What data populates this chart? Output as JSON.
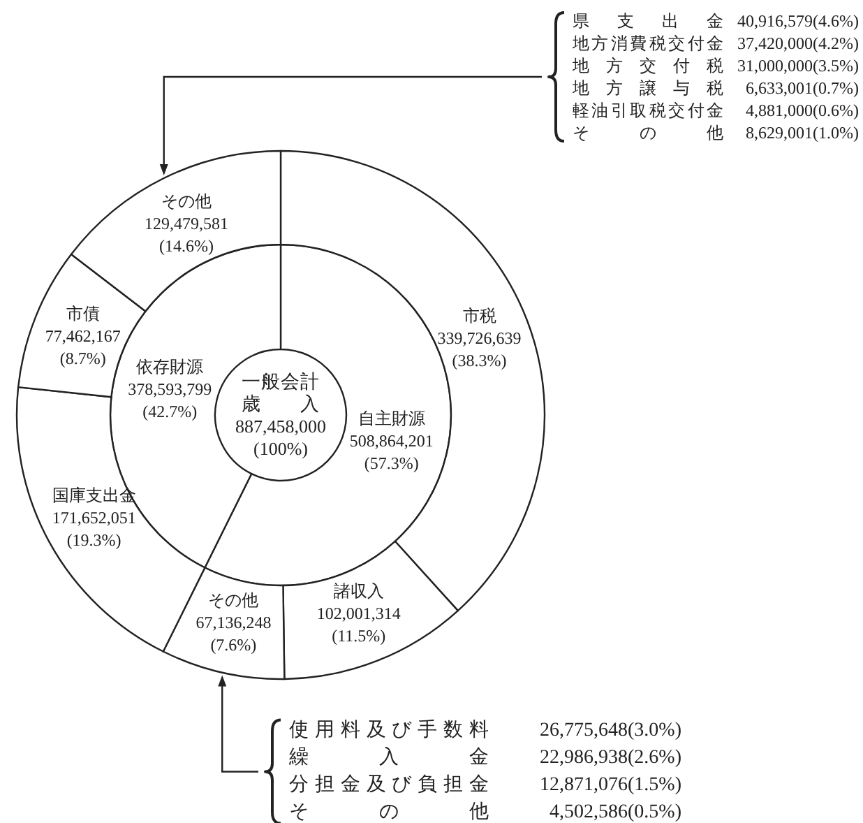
{
  "chart_data": [
    {
      "type": "donut",
      "title": "一般会計",
      "subtitle": "歳入",
      "annotations": [
        "887,458,000",
        "(100%)"
      ],
      "categories": [
        "自主財源",
        "依存財源"
      ],
      "values": [
        508864201,
        378593799
      ],
      "value_labels": [
        "508,864,201 (57.3%)",
        "378,593,799 (42.7%)"
      ],
      "colors": [
        "#ffffff",
        "#ffffff"
      ]
    },
    {
      "type": "donut",
      "categories": [
        "市税",
        "諸収入",
        "その他",
        "国庫支出金",
        "市債",
        "その他"
      ],
      "values": [
        339726639,
        102001314,
        67136248,
        171652051,
        77462167,
        129479581
      ],
      "value_labels": [
        "339,726,639 (38.3%)",
        "102,001,314 (11.5%)",
        "67,136,248 (7.6%)",
        "171,652,051 (19.3%)",
        "77,462,167 (8.7%)",
        "129,479,581 (14.6%)"
      ],
      "colors": [
        "#ffffff",
        "#ffffff",
        "#ffffff",
        "#ffffff",
        "#ffffff",
        "#ffffff"
      ]
    },
    {
      "type": "other",
      "categories": [
        "県支出金",
        "地方消費税交付金",
        "地方交付税",
        "地方譲与税",
        "軽油引取税交付金",
        "その他"
      ],
      "values": [
        40916579,
        37420000,
        31000000,
        6633001,
        4881000,
        8629001
      ],
      "value_labels": [
        "40,916,579(4.6%)",
        "37,420,000(4.2%)",
        "31,000,000(3.5%)",
        "6,633,001(0.7%)",
        "4,881,000(0.6%)",
        "8,629,001(1.0%)"
      ]
    },
    {
      "type": "other",
      "categories": [
        "使用料及び手数料",
        "繰入金",
        "分担金及び負担金",
        "その他"
      ],
      "values": [
        26775648,
        22986938,
        12871076,
        4502586
      ],
      "value_labels": [
        "26,775,648(3.0%)",
        "22,986,938(2.6%)",
        "12,871,076(1.5%)",
        "4,502,586(0.5%)"
      ]
    }
  ]
}
